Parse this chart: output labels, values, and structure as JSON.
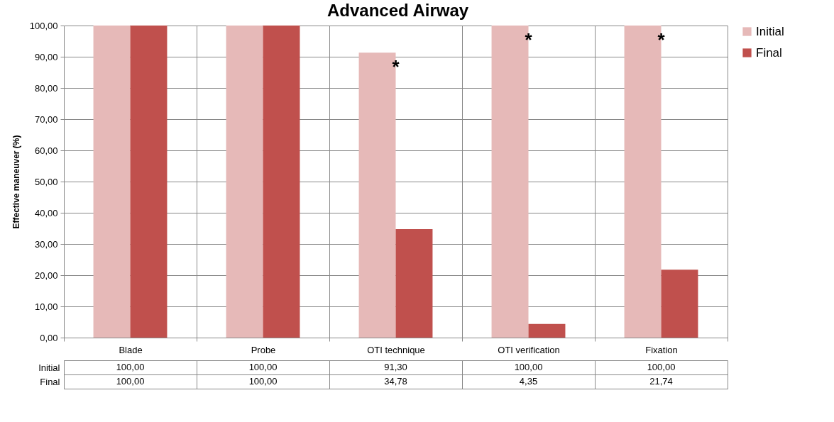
{
  "chart_data": {
    "type": "bar",
    "title": "Advanced Airway",
    "ylabel": "Effective maneuver  (%)",
    "categories": [
      "Blade",
      "Probe",
      "OTI technique",
      "OTI verification",
      "Fixation"
    ],
    "series": [
      {
        "name": "Initial",
        "color": "#e6b9b8",
        "values": [
          100,
          100,
          91.3,
          100,
          100
        ],
        "value_labels": [
          "100,00",
          "100,00",
          "91,30",
          "100,00",
          "100,00"
        ]
      },
      {
        "name": "Final",
        "color": "#c0504d",
        "values": [
          100,
          100,
          34.78,
          4.35,
          21.74
        ],
        "value_labels": [
          "100,00",
          "100,00",
          "34,78",
          "4,35",
          "21,74"
        ]
      }
    ],
    "ylim": [
      0,
      100
    ],
    "yticks": [
      {
        "value": 0,
        "label": "0,00"
      },
      {
        "value": 10,
        "label": "10,00"
      },
      {
        "value": 20,
        "label": "20,00"
      },
      {
        "value": 30,
        "label": "30,00"
      },
      {
        "value": 40,
        "label": "40,00"
      },
      {
        "value": 50,
        "label": "50,00"
      },
      {
        "value": 60,
        "label": "60,00"
      },
      {
        "value": 70,
        "label": "70,00"
      },
      {
        "value": 80,
        "label": "80,00"
      },
      {
        "value": 90,
        "label": "90,00"
      },
      {
        "value": 100,
        "label": "100,00"
      }
    ],
    "grid": "y",
    "legend": "right",
    "annotations": [
      "*",
      "*",
      "*"
    ]
  }
}
